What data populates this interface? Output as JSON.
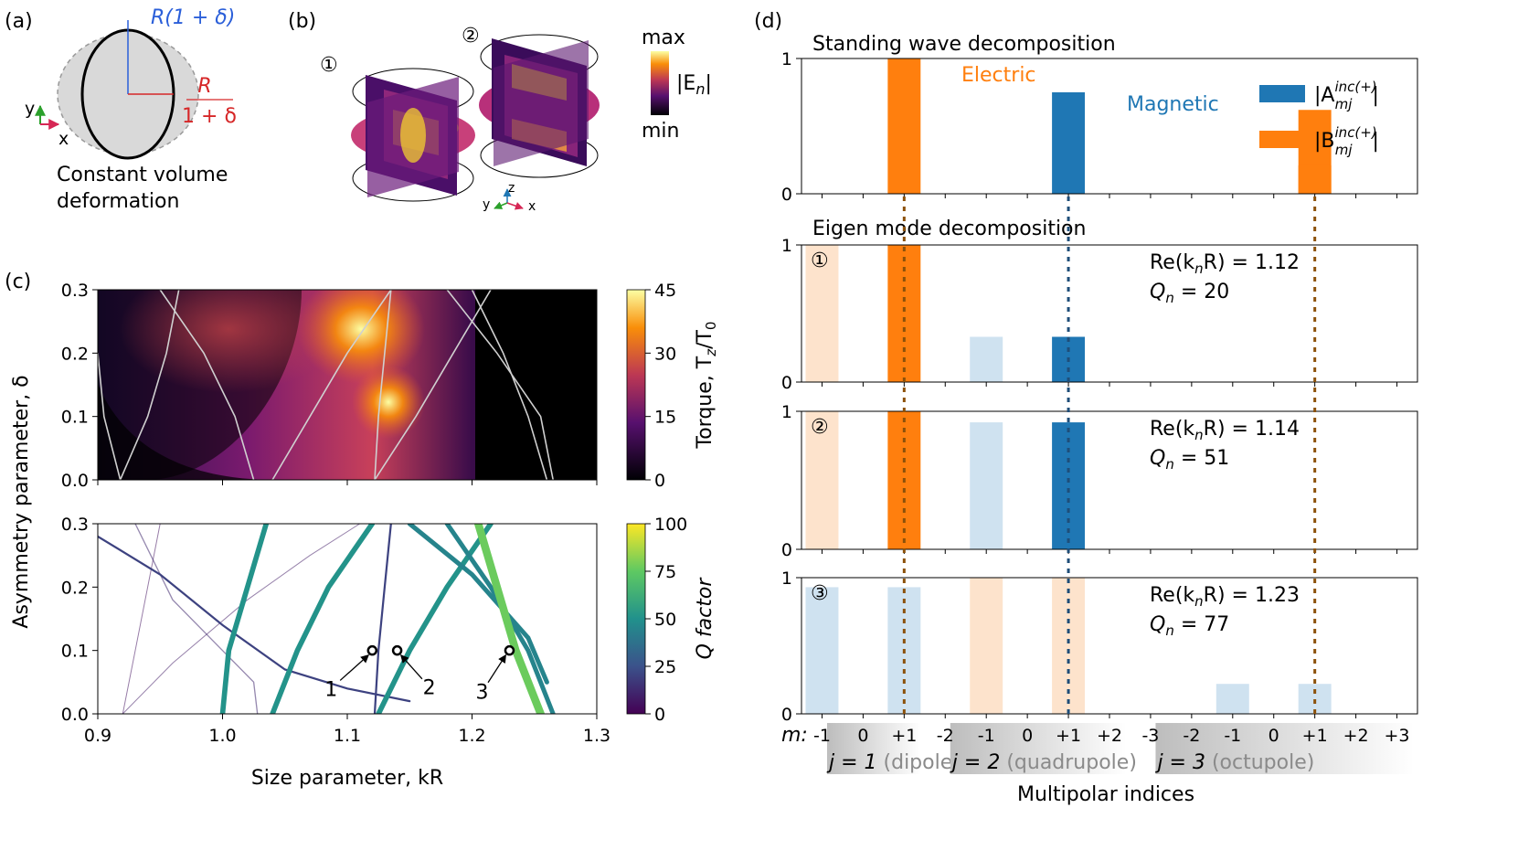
{
  "panel_a": {
    "label": "(a)",
    "caption_line1": "Constant volume",
    "caption_line2": "deformation",
    "r_top": "R(1 + δ)",
    "r_side_num": "R",
    "r_side_den": "1 + δ",
    "axis_y": "y",
    "axis_x": "x"
  },
  "panel_b": {
    "label": "(b)",
    "mode1": "①",
    "mode2": "②",
    "cbar_max": "max",
    "cbar_min": "min",
    "cbar_label": "|E",
    "cbar_label_sub": "n",
    "cbar_label_end": "|",
    "axis_x": "x",
    "axis_y": "y",
    "axis_z": "z",
    "colors": {
      "low": "#1a0b40",
      "mid": "#b8307a",
      "high": "#fbd92b"
    }
  },
  "panel_c": {
    "label": "(c)",
    "y_label": "Asymmetry parameter, δ",
    "x_label": "Size parameter, kR",
    "top_cbar_label": "Torque, T",
    "top_cbar_label_sub": "z",
    "top_cbar_label_mid": "/T",
    "top_cbar_label_sub2": "0",
    "bottom_cbar_label": "Q factor",
    "top_cbar_ticks": [
      "0",
      "15",
      "30",
      "45"
    ],
    "bottom_cbar_ticks": [
      "0",
      "25",
      "50",
      "75",
      "100"
    ],
    "markers": [
      "1",
      "2",
      "3"
    ]
  },
  "panel_d": {
    "label": "(d)",
    "sub1_title": "Standing wave decomposition",
    "sub2_title": "Eigen mode decomposition",
    "electric": "Electric",
    "magnetic": "Magnetic",
    "legend_a": "|A",
    "legend_b": "|B",
    "legend_sup": "inc(+)",
    "legend_sub": "mj",
    "legend_end": "|",
    "mode_labels": [
      {
        "num": "①",
        "re": "Re(k",
        "re_sub": "n",
        "re_end": "R) = 1.12",
        "q": "Q",
        "q_sub": "n",
        "q_end": " = 20"
      },
      {
        "num": "②",
        "re": "Re(k",
        "re_sub": "n",
        "re_end": "R) = 1.14",
        "q": "Q",
        "q_sub": "n",
        "q_end": " = 51"
      },
      {
        "num": "③",
        "re": "Re(k",
        "re_sub": "n",
        "re_end": "R) = 1.23",
        "q": "Q",
        "q_sub": "n",
        "q_end": " = 77"
      }
    ],
    "m_prefix": "m:",
    "m_ticks": [
      "-1",
      "0",
      "+1",
      "-2",
      "-1",
      "0",
      "+1",
      "+2",
      "-3",
      "-2",
      "-1",
      "0",
      "+1",
      "+2",
      "+3"
    ],
    "groups": [
      {
        "j": "j = 1",
        "name": " (dipole)"
      },
      {
        "j": "j = 2",
        "name": " (quadrupole)"
      },
      {
        "j": "j = 3",
        "name": " (octupole)"
      }
    ],
    "x_label": "Multipolar indices",
    "y_ticks": [
      "0",
      "1"
    ],
    "colors": {
      "electric": "#ff7f0e",
      "magnetic": "#1f77b4",
      "electric_light": "#fde3cc",
      "magnetic_light": "#cfe2f0"
    }
  },
  "chart_data": [
    {
      "type": "heatmap",
      "id": "torque-map",
      "xlabel": "Size parameter, kR",
      "ylabel": "Asymmetry parameter, δ",
      "xlim": [
        0.9,
        1.3
      ],
      "ylim": [
        0.0,
        0.3
      ],
      "x_ticks": [
        0.9,
        1.0,
        1.1,
        1.2,
        1.3
      ],
      "y_ticks": [
        0.0,
        0.1,
        0.2,
        0.3
      ],
      "colorbar": {
        "label": "Torque, Tz/T0",
        "range": [
          0,
          45
        ],
        "ticks": [
          0,
          15,
          30,
          45
        ],
        "colormap": "plasma"
      },
      "overlay_curves": [
        [
          [
            0.918,
            0.0
          ],
          [
            0.905,
            0.1
          ],
          [
            0.9,
            0.2
          ]
        ],
        [
          [
            0.918,
            0.0
          ],
          [
            0.94,
            0.1
          ],
          [
            0.955,
            0.2
          ],
          [
            0.965,
            0.3
          ]
        ],
        [
          [
            1.025,
            0.0
          ],
          [
            1.01,
            0.1
          ],
          [
            0.985,
            0.2
          ],
          [
            0.95,
            0.3
          ]
        ],
        [
          [
            1.04,
            0.0
          ],
          [
            1.07,
            0.1
          ],
          [
            1.1,
            0.2
          ],
          [
            1.135,
            0.3
          ]
        ],
        [
          [
            1.122,
            0.0
          ],
          [
            1.125,
            0.1
          ],
          [
            1.13,
            0.2
          ],
          [
            1.135,
            0.3
          ]
        ],
        [
          [
            1.122,
            0.0
          ],
          [
            1.155,
            0.1
          ],
          [
            1.185,
            0.2
          ],
          [
            1.215,
            0.3
          ]
        ],
        [
          [
            1.2,
            0.3
          ],
          [
            1.225,
            0.2
          ],
          [
            1.245,
            0.1
          ],
          [
            1.26,
            0.0
          ]
        ],
        [
          [
            1.18,
            0.3
          ],
          [
            1.22,
            0.2
          ],
          [
            1.255,
            0.1
          ],
          [
            1.265,
            0.0
          ]
        ]
      ]
    },
    {
      "type": "line",
      "id": "q-factor-map",
      "xlabel": "Size parameter, kR",
      "ylabel": "Asymmetry parameter, δ",
      "xlim": [
        0.9,
        1.3
      ],
      "ylim": [
        0.0,
        0.3
      ],
      "x_ticks": [
        0.9,
        1.0,
        1.1,
        1.2,
        1.3
      ],
      "y_ticks": [
        0.0,
        0.1,
        0.2,
        0.3
      ],
      "colorbar": {
        "label": "Q factor",
        "range": [
          0,
          100
        ],
        "ticks": [
          0,
          25,
          50,
          75,
          100
        ],
        "colormap": "viridis"
      },
      "series": [
        {
          "q": 5,
          "points": [
            [
              0.92,
              0.0
            ],
            [
              0.93,
              0.1
            ],
            [
              0.94,
              0.2
            ],
            [
              0.95,
              0.3
            ]
          ]
        },
        {
          "q": 8,
          "points": [
            [
              0.92,
              0.0
            ],
            [
              0.96,
              0.08
            ],
            [
              1.02,
              0.18
            ],
            [
              1.07,
              0.25
            ],
            [
              1.11,
              0.3
            ]
          ]
        },
        {
          "q": 12,
          "points": [
            [
              1.028,
              0.0
            ],
            [
              1.025,
              0.05
            ],
            [
              1.0,
              0.1
            ],
            [
              0.96,
              0.18
            ],
            [
              0.93,
              0.3
            ]
          ]
        },
        {
          "q": 20,
          "points": [
            [
              0.9,
              0.28
            ],
            [
              0.95,
              0.22
            ],
            [
              1.0,
              0.14
            ],
            [
              1.05,
              0.07
            ],
            [
              1.1,
              0.04
            ],
            [
              1.15,
              0.02
            ]
          ]
        },
        {
          "q": 20,
          "points": [
            [
              1.122,
              0.0
            ],
            [
              1.125,
              0.1
            ],
            [
              1.13,
              0.2
            ],
            [
              1.135,
              0.3
            ]
          ]
        },
        {
          "q": 51,
          "points": [
            [
              1.0,
              0.0
            ],
            [
              1.005,
              0.1
            ],
            [
              1.02,
              0.2
            ],
            [
              1.035,
              0.3
            ]
          ]
        },
        {
          "q": 51,
          "points": [
            [
              1.04,
              0.0
            ],
            [
              1.06,
              0.1
            ],
            [
              1.085,
              0.2
            ],
            [
              1.12,
              0.3
            ]
          ]
        },
        {
          "q": 51,
          "points": [
            [
              1.125,
              0.0
            ],
            [
              1.15,
              0.1
            ],
            [
              1.18,
              0.2
            ],
            [
              1.215,
              0.3
            ]
          ]
        },
        {
          "q": 45,
          "points": [
            [
              1.18,
              0.3
            ],
            [
              1.215,
              0.2
            ],
            [
              1.245,
              0.1
            ],
            [
              1.265,
              0.0
            ]
          ]
        },
        {
          "q": 45,
          "points": [
            [
              1.15,
              0.3
            ],
            [
              1.2,
              0.22
            ],
            [
              1.245,
              0.12
            ],
            [
              1.26,
              0.05
            ]
          ]
        },
        {
          "q": 77,
          "points": [
            [
              1.205,
              0.3
            ],
            [
              1.22,
              0.2
            ],
            [
              1.235,
              0.1
            ],
            [
              1.255,
              0.0
            ]
          ]
        }
      ],
      "annotations": [
        {
          "label": "1",
          "x": 1.12,
          "y": 0.1
        },
        {
          "label": "2",
          "x": 1.14,
          "y": 0.1
        },
        {
          "label": "3",
          "x": 1.23,
          "y": 0.1
        }
      ]
    },
    {
      "type": "bar",
      "id": "multipole-bars",
      "categories": [
        "j=1 m=-1",
        "j=1 m=0",
        "j=1 m=+1",
        "j=2 m=-2",
        "j=2 m=-1",
        "j=2 m=0",
        "j=2 m=+1",
        "j=2 m=+2",
        "j=3 m=-3",
        "j=3 m=-2",
        "j=3 m=-1",
        "j=3 m=0",
        "j=3 m=+1",
        "j=3 m=+2",
        "j=3 m=+3"
      ],
      "ylim": [
        0,
        1
      ],
      "series": [
        {
          "name": "Standing wave decomposition",
          "A": [
            0,
            0,
            0,
            0,
            0,
            0,
            0.75,
            0,
            0,
            0,
            0,
            0,
            0,
            0,
            0
          ],
          "B": [
            0,
            0,
            1.0,
            0,
            0,
            0,
            0,
            0,
            0,
            0,
            0,
            0,
            0.62,
            0,
            0
          ],
          "B_strong": [
            0,
            0,
            1.0,
            0,
            0,
            0,
            0,
            0,
            0,
            0,
            0,
            0,
            0.21,
            0,
            0
          ]
        },
        {
          "name": "Mode 1",
          "A": [
            0,
            0,
            0,
            0,
            0.33,
            0,
            0.33,
            0,
            0,
            0,
            0,
            0,
            0,
            0,
            0
          ],
          "B": [
            1.0,
            0,
            1.0,
            0,
            0,
            0,
            0,
            0,
            0,
            0,
            0,
            0,
            0,
            0,
            0
          ]
        },
        {
          "name": "Mode 2",
          "A": [
            0,
            0,
            0,
            0,
            0.92,
            0,
            0.92,
            0,
            0,
            0,
            0,
            0,
            0,
            0,
            0
          ],
          "B": [
            1.0,
            0,
            1.0,
            0,
            0,
            0,
            0,
            0,
            0,
            0,
            0,
            0,
            0,
            0,
            0
          ]
        },
        {
          "name": "Mode 3",
          "A": [
            0.93,
            0,
            0.93,
            0,
            0,
            0,
            0,
            0,
            0,
            0,
            0.22,
            0,
            0.22,
            0,
            0
          ],
          "B": [
            0,
            0,
            0,
            0,
            1.0,
            0,
            1.0,
            0,
            0,
            0,
            0,
            0,
            0,
            0,
            0
          ]
        }
      ],
      "strong_A": [
        [
          false,
          false,
          false,
          false,
          false,
          false,
          true,
          false,
          false,
          false,
          false,
          false,
          false,
          false,
          false
        ],
        [
          false,
          false,
          false,
          false,
          false,
          false,
          true,
          false,
          false,
          false,
          false,
          false,
          false,
          false,
          false
        ],
        [
          false,
          false,
          false,
          false,
          false,
          false,
          true,
          false,
          false,
          false,
          false,
          false,
          false,
          false,
          false
        ],
        [
          false,
          false,
          false,
          false,
          false,
          false,
          false,
          false,
          false,
          false,
          false,
          false,
          false,
          false,
          false
        ]
      ],
      "strong_B": [
        [
          false,
          false,
          true,
          false,
          false,
          false,
          false,
          false,
          false,
          false,
          false,
          false,
          true,
          false,
          false
        ],
        [
          false,
          false,
          true,
          false,
          false,
          false,
          false,
          false,
          false,
          false,
          false,
          false,
          false,
          false,
          false
        ],
        [
          false,
          false,
          true,
          false,
          false,
          false,
          false,
          false,
          false,
          false,
          false,
          false,
          false,
          false,
          false
        ],
        [
          false,
          false,
          false,
          false,
          false,
          false,
          false,
          false,
          false,
          false,
          false,
          false,
          false,
          false,
          false
        ]
      ]
    }
  ]
}
